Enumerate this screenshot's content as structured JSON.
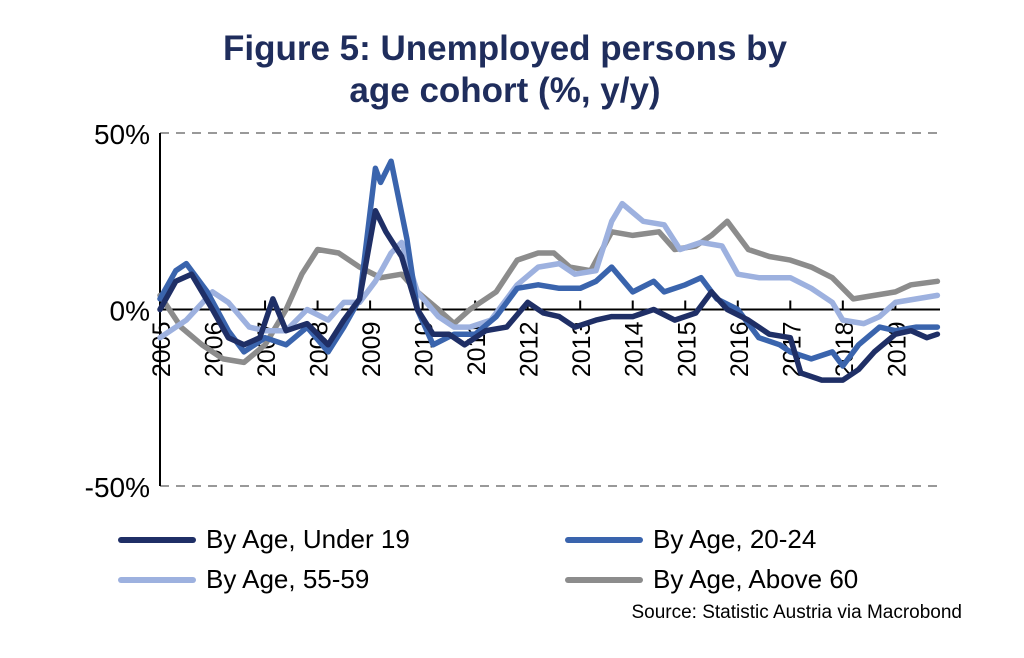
{
  "chart_data": {
    "type": "line",
    "title": "Figure 5: Unemployed persons by age cohort (%, y/y)",
    "title_lines": [
      "Figure 5: Unemployed persons by",
      "age cohort (%, y/y)"
    ],
    "xlabel": "",
    "ylabel": "",
    "xlim": [
      2005,
      2019.85
    ],
    "ylim": [
      -50,
      50
    ],
    "yticks": [
      {
        "value": 50,
        "label": "50%"
      },
      {
        "value": 0,
        "label": "0%"
      },
      {
        "value": -50,
        "label": "-50%"
      }
    ],
    "xticks": [
      "2005",
      "2006",
      "2007",
      "2008",
      "2009",
      "2010",
      "2011",
      "2012",
      "2013",
      "2014",
      "2015",
      "2016",
      "2017",
      "2018",
      "2019"
    ],
    "grid": "dashed at 50% and -50%",
    "legend_position": "bottom",
    "source": "Source: Statistic Austria via Macrobond",
    "series": [
      {
        "name": "By Age, Under 19",
        "color": "#1f2f66",
        "x": [
          2005.0,
          2005.3,
          2005.6,
          2006.0,
          2006.3,
          2006.6,
          2006.9,
          2007.15,
          2007.4,
          2007.8,
          2008.2,
          2008.5,
          2008.8,
          2009.1,
          2009.3,
          2009.6,
          2009.9,
          2010.2,
          2010.5,
          2010.8,
          2011.2,
          2011.6,
          2012.0,
          2012.3,
          2012.6,
          2012.9,
          2013.3,
          2013.6,
          2014.0,
          2014.4,
          2014.8,
          2015.2,
          2015.5,
          2015.8,
          2016.2,
          2016.6,
          2017.0,
          2017.2,
          2017.6,
          2018.0,
          2018.3,
          2018.6,
          2019.0,
          2019.3,
          2019.6,
          2019.8
        ],
        "y": [
          0,
          8,
          10,
          0,
          -8,
          -10,
          -8,
          3,
          -6,
          -4,
          -10,
          -3,
          3,
          28,
          22,
          15,
          0,
          -7,
          -7,
          -10,
          -6,
          -5,
          2,
          -1,
          -2,
          -5,
          -3,
          -2,
          -2,
          0,
          -3,
          -1,
          5,
          0,
          -3,
          -7,
          -8,
          -18,
          -20,
          -20,
          -17,
          -12,
          -7,
          -6,
          -8,
          -7
        ]
      },
      {
        "name": "By Age, 20-24",
        "color": "#3a64ad",
        "x": [
          2005.0,
          2005.3,
          2005.5,
          2005.9,
          2006.3,
          2006.6,
          2007.0,
          2007.4,
          2007.8,
          2008.2,
          2008.5,
          2008.8,
          2009.1,
          2009.2,
          2009.4,
          2009.7,
          2009.9,
          2010.2,
          2010.6,
          2011.0,
          2011.4,
          2011.8,
          2012.2,
          2012.6,
          2013.0,
          2013.3,
          2013.6,
          2014.0,
          2014.4,
          2014.6,
          2015.0,
          2015.3,
          2015.6,
          2016.0,
          2016.4,
          2016.8,
          2017.0,
          2017.4,
          2017.8,
          2018.0,
          2018.3,
          2018.7,
          2019.0,
          2019.4,
          2019.8
        ],
        "y": [
          3,
          11,
          13,
          5,
          -6,
          -12,
          -8,
          -10,
          -5,
          -12,
          -5,
          3,
          40,
          36,
          42,
          20,
          0,
          -10,
          -7,
          -7,
          -2,
          6,
          7,
          6,
          6,
          8,
          12,
          5,
          8,
          5,
          7,
          9,
          3,
          0,
          -8,
          -10,
          -12,
          -14,
          -12,
          -16,
          -10,
          -5,
          -6,
          -5,
          -5
        ]
      },
      {
        "name": "By Age, 55-59",
        "color": "#9db1df",
        "x": [
          2005.0,
          2005.5,
          2006.0,
          2006.3,
          2006.7,
          2007.0,
          2007.4,
          2007.8,
          2008.2,
          2008.5,
          2008.8,
          2009.1,
          2009.4,
          2009.6,
          2009.9,
          2010.3,
          2010.6,
          2010.9,
          2011.3,
          2011.8,
          2012.2,
          2012.6,
          2012.9,
          2013.3,
          2013.6,
          2013.8,
          2014.2,
          2014.6,
          2014.9,
          2015.3,
          2015.7,
          2016.0,
          2016.4,
          2016.8,
          2017.0,
          2017.4,
          2017.8,
          2018.0,
          2018.4,
          2018.7,
          2019.0,
          2019.4,
          2019.8
        ],
        "y": [
          -8,
          -3,
          5,
          2,
          -5,
          -6,
          -6,
          0,
          -3,
          2,
          2,
          8,
          16,
          19,
          5,
          -2,
          -5,
          -5,
          -3,
          7,
          12,
          13,
          10,
          11,
          25,
          30,
          25,
          24,
          17,
          19,
          18,
          10,
          9,
          9,
          9,
          6,
          2,
          -3,
          -4,
          -2,
          2,
          3,
          4
        ]
      },
      {
        "name": "By Age, Above 60",
        "color": "#8c8c8c",
        "x": [
          2005.0,
          2005.4,
          2005.8,
          2006.2,
          2006.6,
          2007.0,
          2007.4,
          2007.7,
          2008.0,
          2008.4,
          2008.8,
          2009.2,
          2009.6,
          2009.9,
          2010.3,
          2010.6,
          2010.9,
          2011.4,
          2011.8,
          2012.2,
          2012.5,
          2012.8,
          2013.2,
          2013.6,
          2014.0,
          2014.5,
          2014.8,
          2015.2,
          2015.5,
          2015.8,
          2016.2,
          2016.6,
          2017.0,
          2017.4,
          2017.8,
          2018.2,
          2018.6,
          2019.0,
          2019.3,
          2019.8
        ],
        "y": [
          4,
          -5,
          -10,
          -14,
          -15,
          -10,
          0,
          10,
          17,
          16,
          12,
          9,
          10,
          5,
          0,
          -4,
          0,
          5,
          14,
          16,
          16,
          12,
          11,
          22,
          21,
          22,
          17,
          18,
          21,
          25,
          17,
          15,
          14,
          12,
          9,
          3,
          4,
          5,
          7,
          8
        ]
      }
    ]
  }
}
